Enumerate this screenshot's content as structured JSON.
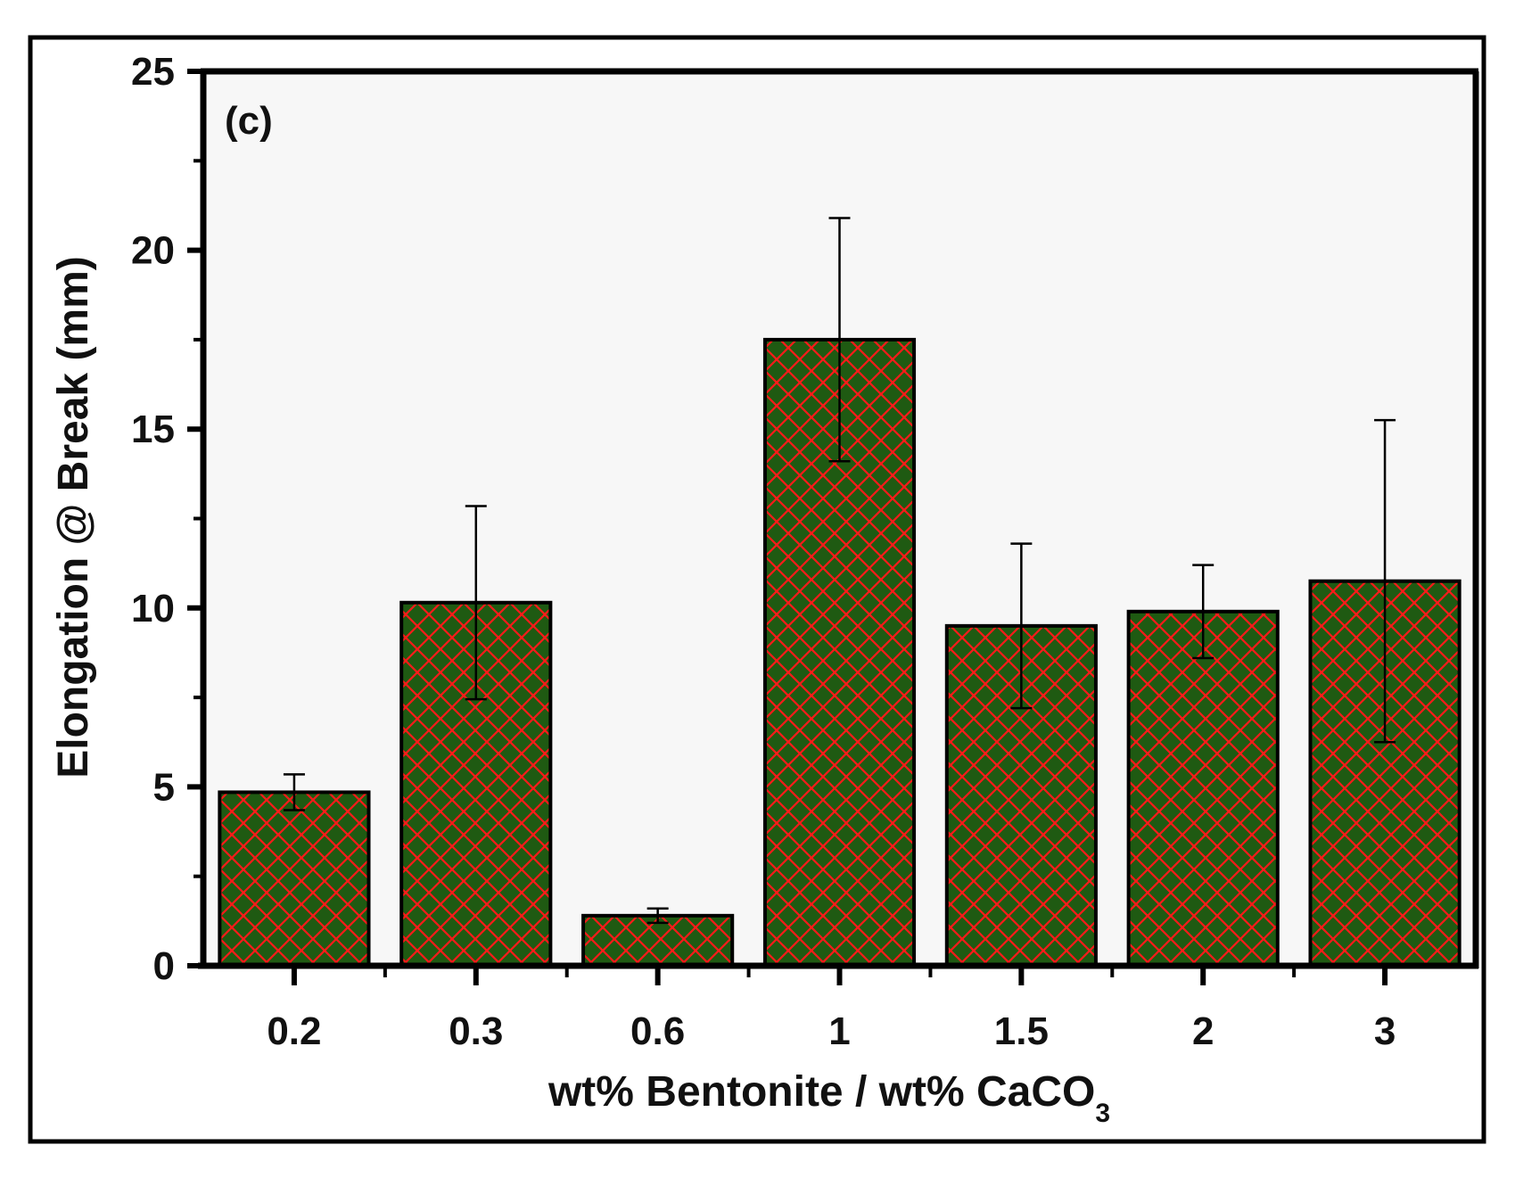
{
  "chart_data": {
    "type": "bar",
    "panel_label": "(c)",
    "title": "",
    "xlabel": {
      "main": "wt% Bentonite / wt% CaCO",
      "subscript": "3"
    },
    "ylabel": "Elongation @ Break (mm)",
    "categories": [
      "0.2",
      "0.3",
      "0.6",
      "1",
      "1.5",
      "2",
      "3"
    ],
    "values": [
      4.85,
      10.15,
      1.4,
      17.5,
      9.5,
      9.9,
      10.75
    ],
    "errors": [
      0.5,
      2.7,
      0.2,
      3.4,
      2.3,
      1.3,
      4.5
    ],
    "ylim": [
      0,
      25
    ],
    "yticks": [
      0,
      5,
      10,
      15,
      20,
      25
    ],
    "grid": false,
    "legend": "none",
    "colors": {
      "bar_fill": "#1f5a12",
      "hatch": "#ff1a1a",
      "bar_edge": "#000000",
      "axis": "#000000",
      "error_bar": "#000000",
      "plot_background": "#f7f7f7"
    }
  }
}
